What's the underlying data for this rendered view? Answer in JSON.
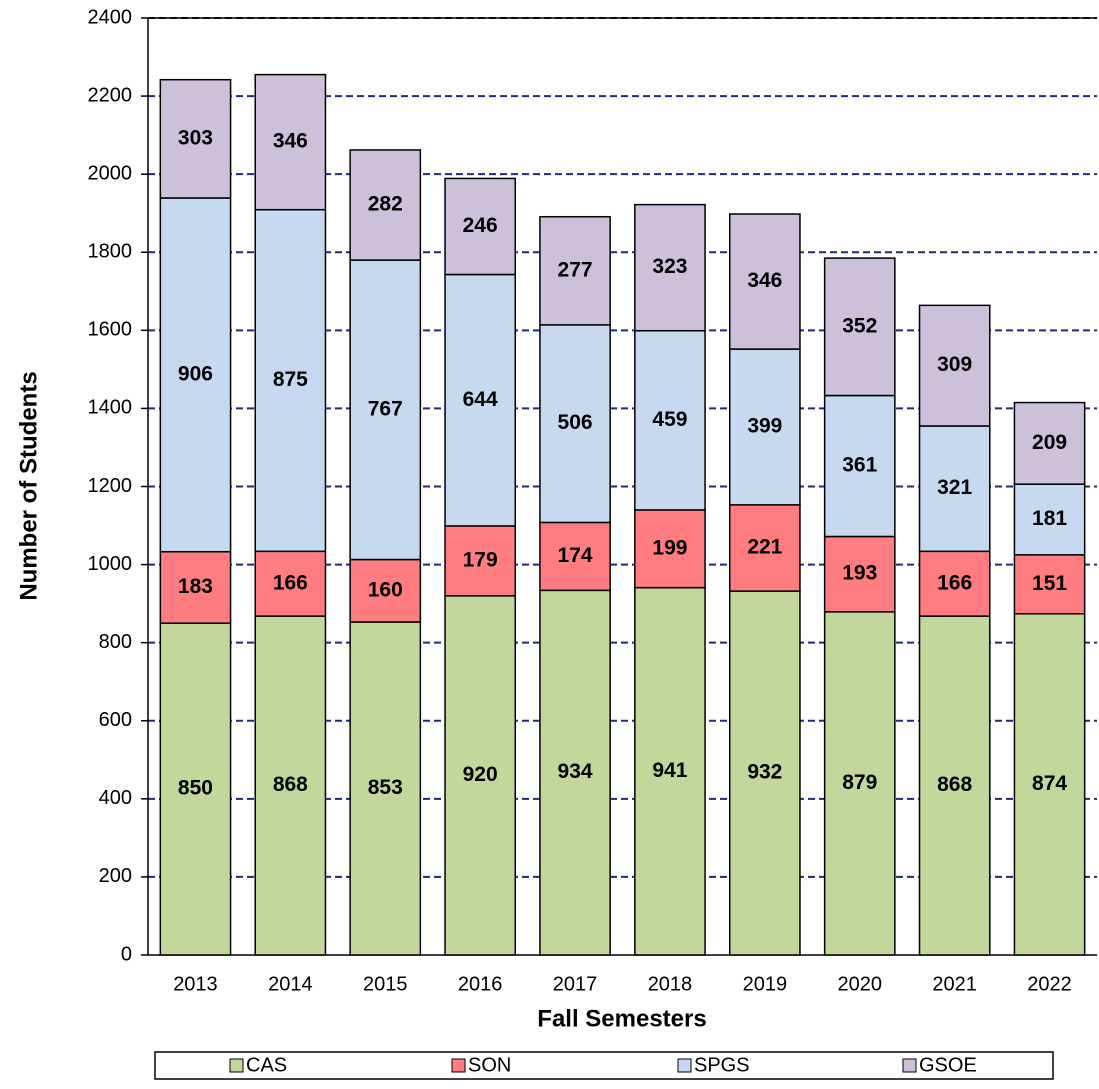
{
  "chart_data": {
    "type": "stacked_bar",
    "x_label": "Fall Semesters",
    "y_label": "Number of Students",
    "categories": [
      "2013",
      "2014",
      "2015",
      "2016",
      "2017",
      "2018",
      "2019",
      "2020",
      "2021",
      "2022"
    ],
    "series": [
      {
        "name": "CAS",
        "color": "#c3d69b",
        "values": [
          850,
          868,
          853,
          920,
          934,
          941,
          932,
          879,
          868,
          874
        ]
      },
      {
        "name": "SON",
        "color": "#ff7c80",
        "values": [
          183,
          166,
          160,
          179,
          174,
          199,
          221,
          193,
          166,
          151
        ]
      },
      {
        "name": "SPGS",
        "color": "#c6d9f1",
        "values": [
          906,
          875,
          767,
          644,
          506,
          459,
          399,
          361,
          321,
          181
        ]
      },
      {
        "name": "GSOE",
        "color": "#ccc0da",
        "values": [
          303,
          346,
          282,
          246,
          277,
          323,
          346,
          352,
          309,
          209
        ]
      }
    ],
    "ylim": [
      0,
      2400
    ],
    "yticks": [
      0,
      200,
      400,
      600,
      800,
      1000,
      1200,
      1400,
      1600,
      1800,
      2000,
      2200,
      2400
    ],
    "grid": true,
    "legend": "bottom"
  }
}
